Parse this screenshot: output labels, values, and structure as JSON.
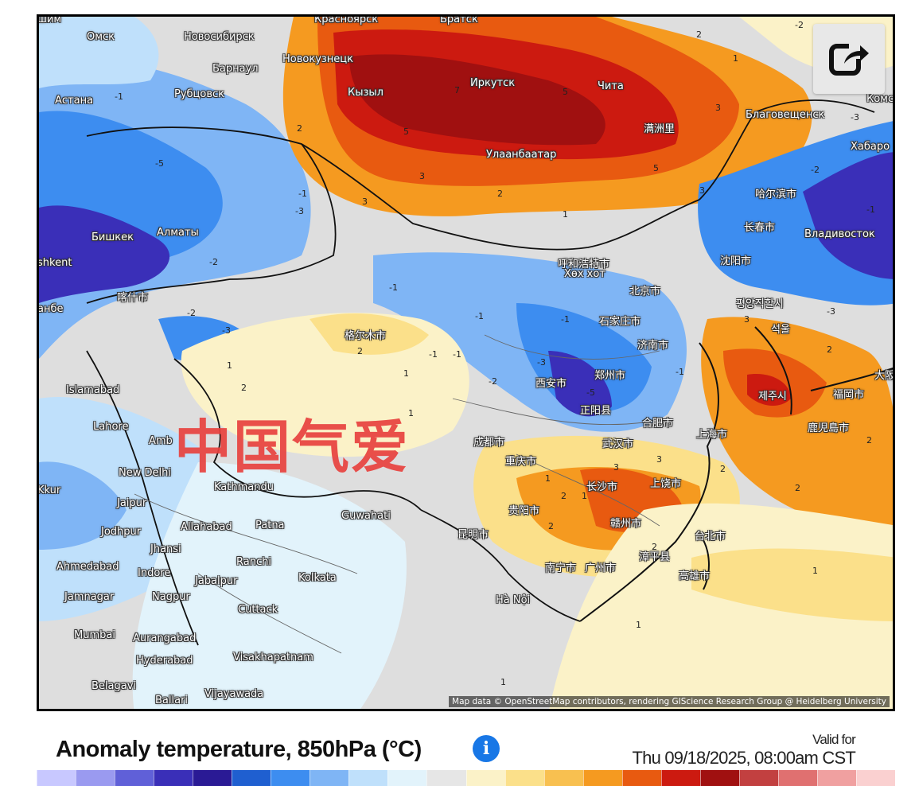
{
  "map": {
    "watermark": "中国气爱",
    "attribution": "Map data © OpenStreetMap contributors, rendering GIScience Research Group @ Heidelberg University",
    "cities": [
      {
        "name": "шим"
      },
      {
        "name": "Омск"
      },
      {
        "name": "Новосибирск"
      },
      {
        "name": "Красноярск"
      },
      {
        "name": "Братск"
      },
      {
        "name": "Новокузнецк"
      },
      {
        "name": "Барнаул"
      },
      {
        "name": "Рубцовск"
      },
      {
        "name": "Астана"
      },
      {
        "name": "Кызыл"
      },
      {
        "name": "Иркутск"
      },
      {
        "name": "Чита"
      },
      {
        "name": "Благовещенск"
      },
      {
        "name": "Комс"
      },
      {
        "name": "Хабаро"
      },
      {
        "name": "满洲里"
      },
      {
        "name": "Улаанбаатар"
      },
      {
        "name": "哈尔滨市"
      },
      {
        "name": "长春市"
      },
      {
        "name": "Владивосток"
      },
      {
        "name": "沈阳市"
      },
      {
        "name": "呼和浩特市"
      },
      {
        "name": "Хөх хот"
      },
      {
        "name": "北京市"
      },
      {
        "name": "평양직할시"
      },
      {
        "name": "석울"
      },
      {
        "name": "石家庄市"
      },
      {
        "name": "济南市"
      },
      {
        "name": "Бишкек"
      },
      {
        "name": "Алматы"
      },
      {
        "name": "shkent"
      },
      {
        "name": "анбе"
      },
      {
        "name": "喀什市"
      },
      {
        "name": "格尔木市"
      },
      {
        "name": "西安市"
      },
      {
        "name": "郑州市"
      },
      {
        "name": "正阳县"
      },
      {
        "name": "合肥市"
      },
      {
        "name": "上海市"
      },
      {
        "name": "武汉市"
      },
      {
        "name": "제주시"
      },
      {
        "name": "福岡市"
      },
      {
        "name": "鹿児島市"
      },
      {
        "name": "大阪"
      },
      {
        "name": "Islamabad"
      },
      {
        "name": "Lahore"
      },
      {
        "name": "Amb"
      },
      {
        "name": "New Delhi"
      },
      {
        "name": "Jaipur"
      },
      {
        "name": "Jodhpur"
      },
      {
        "name": "Kkur"
      },
      {
        "name": "成都市"
      },
      {
        "name": "重庆市"
      },
      {
        "name": "长沙市"
      },
      {
        "name": "上饶市"
      },
      {
        "name": "贵阳市"
      },
      {
        "name": "赣州市"
      },
      {
        "name": "Kathmandu"
      },
      {
        "name": "Guwahati"
      },
      {
        "name": "Allahabad"
      },
      {
        "name": "Patna"
      },
      {
        "name": "Jhansi"
      },
      {
        "name": "昆明市"
      },
      {
        "name": "台北市"
      },
      {
        "name": "高雄市"
      },
      {
        "name": "Ahmedabad"
      },
      {
        "name": "Indore"
      },
      {
        "name": "Ranchi"
      },
      {
        "name": "Jabalpur"
      },
      {
        "name": "Kolkata"
      },
      {
        "name": "Jamnagar"
      },
      {
        "name": "Nagpur"
      },
      {
        "name": "Cuttack"
      },
      {
        "name": "Hà Nội"
      },
      {
        "name": "南宁市"
      },
      {
        "name": "广州市"
      },
      {
        "name": "漳平县"
      },
      {
        "name": "Mumbai"
      },
      {
        "name": "Aurangabad"
      },
      {
        "name": "Hyderabad"
      },
      {
        "name": "Visakhapatnam"
      },
      {
        "name": "Belagavi"
      },
      {
        "name": "Ballari"
      },
      {
        "name": "Vijayawada"
      }
    ],
    "contour_labels": [
      "-2",
      "-3",
      "-1",
      "-5",
      "-2",
      "-1",
      "-3",
      "-1",
      "-3",
      "-2",
      "-1",
      "-2",
      "-1",
      "-3",
      "-1",
      "-5",
      "-2",
      "-3",
      "-1",
      "-1",
      "1",
      "2",
      "3",
      "5",
      "7",
      "3",
      "5",
      "5",
      "3",
      "2",
      "3",
      "2",
      "1",
      "2",
      "1",
      "1",
      "2",
      "-1",
      "1",
      "2",
      "1",
      "1",
      "2",
      "3",
      "2",
      "2",
      "3",
      "3",
      "2",
      "2",
      "2",
      "1",
      "1",
      "1"
    ]
  },
  "share": {
    "icon": "share-icon"
  },
  "footer": {
    "title": "Anomaly temperature, 850hPa (°C)",
    "info_icon": "i",
    "valid_label": "Valid for",
    "valid_date": "Thu 09/18/2025, 08:00am CST"
  },
  "legend": {
    "colors": [
      "#c8c8ff",
      "#9a9af0",
      "#6060d8",
      "#3a2fb8",
      "#2a1a95",
      "#1f5fd0",
      "#3d8df0",
      "#7fb5f5",
      "#bfe0fb",
      "#e2f3fb",
      "#e6e6e6",
      "#fbf2c8",
      "#fbe08a",
      "#f8c050",
      "#f59a20",
      "#e85a10",
      "#cc1a10",
      "#a01010",
      "#c24040",
      "#e07070",
      "#f0a0a0",
      "#fad0d0"
    ]
  }
}
